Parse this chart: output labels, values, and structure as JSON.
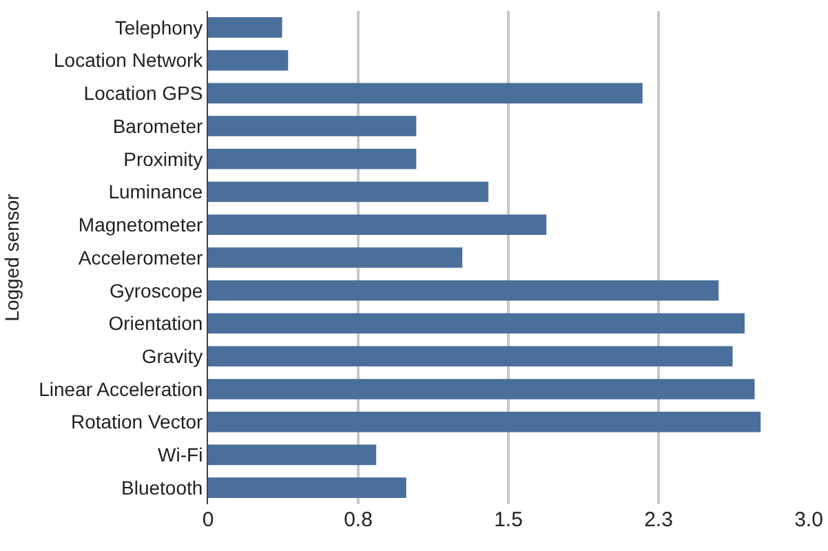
{
  "chart_data": {
    "type": "bar",
    "orientation": "horizontal",
    "ylabel": "Logged sensor",
    "categories": [
      "Telephony",
      "Location Network",
      "Location GPS",
      "Barometer",
      "Proximity",
      "Luminance",
      "Magnetometer",
      "Accelerometer",
      "Gyroscope",
      "Orientation",
      "Gravity",
      "Linear Acceleration",
      "Rotation Vector",
      "Wi-Fi",
      "Bluetooth"
    ],
    "values": [
      0.37,
      0.4,
      2.17,
      1.04,
      1.04,
      1.4,
      1.69,
      1.27,
      2.55,
      2.68,
      2.62,
      2.73,
      2.76,
      0.84,
      0.99
    ],
    "color": "#4a6f9a",
    "xlim": [
      0,
      3.0
    ],
    "xticks": [
      0,
      {
        "value": 0.75,
        "label": "0.8"
      },
      1.5,
      {
        "value": 2.25,
        "label": "2.3"
      },
      {
        "value": 3.0,
        "label": "3.0"
      }
    ],
    "grid": "x"
  }
}
